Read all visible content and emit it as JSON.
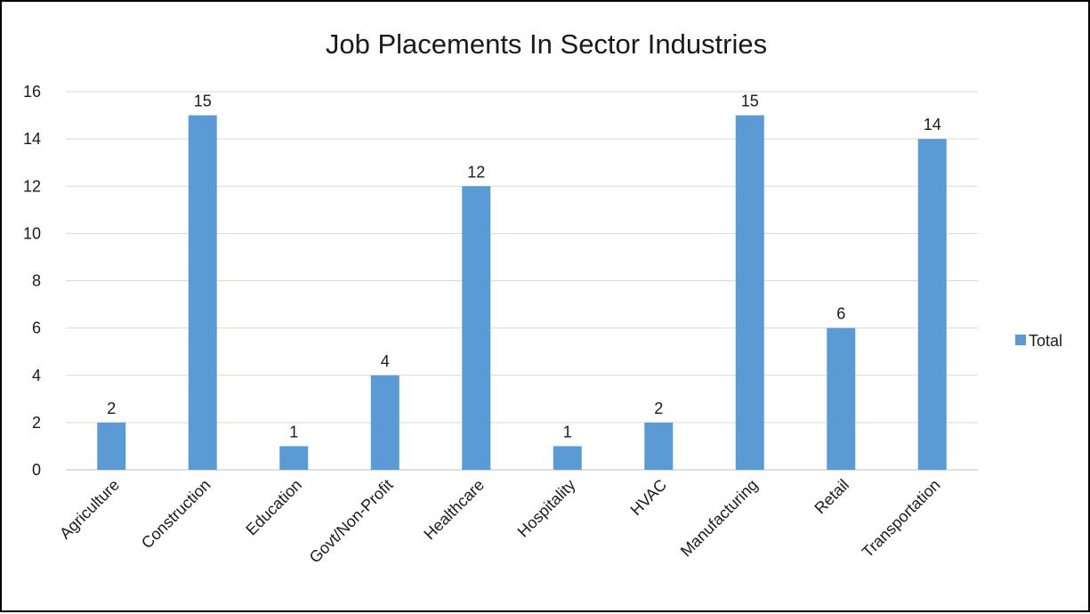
{
  "colors": {
    "bar": "#5b9bd5",
    "grid": "#d9d9d9",
    "axis": "#bfbfbf",
    "text": "#1a1a1a",
    "frame": "#000000"
  },
  "chart_data": {
    "type": "bar",
    "title": "Job Placements In Sector Industries",
    "xlabel": "",
    "ylabel": "",
    "categories": [
      "Agriculture",
      "Construction",
      "Education",
      "Govt/Non-Profit",
      "Healthcare",
      "Hospitality",
      "HVAC",
      "Manufacturing",
      "Retail",
      "Transportation"
    ],
    "series": [
      {
        "name": "Total",
        "values": [
          2,
          15,
          1,
          4,
          12,
          1,
          2,
          15,
          6,
          14
        ]
      }
    ],
    "ylim": [
      0,
      16
    ],
    "yticks": [
      0,
      2,
      4,
      6,
      8,
      10,
      12,
      14,
      16
    ],
    "grid": true,
    "data_labels": true,
    "legend_position": "right"
  }
}
